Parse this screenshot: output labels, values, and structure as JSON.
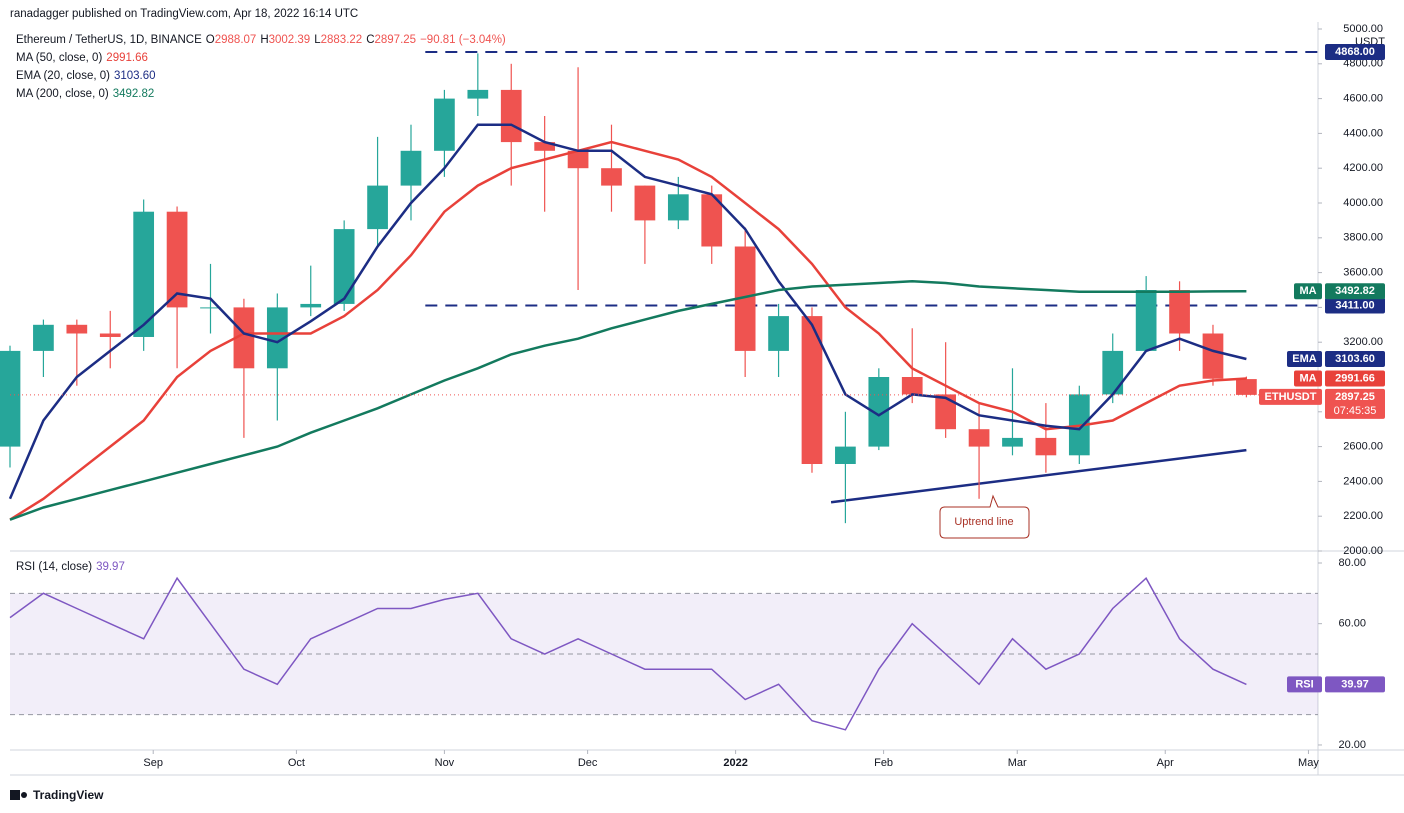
{
  "chart_data": {
    "type": "candlestick",
    "publisher": "ranadagger published on TradingView.com, Apr 18, 2022 16:14 UTC",
    "title": "Ethereum / TetherUS, 1D, BINANCE",
    "ohlc_legend": [
      {
        "key": "O",
        "value": "2988.07"
      },
      {
        "key": "H",
        "value": "3002.39"
      },
      {
        "key": "L",
        "value": "2883.22"
      },
      {
        "key": "C",
        "value": "2897.25"
      }
    ],
    "change": "−90.81 (−3.04%)",
    "x": [
      0,
      7,
      14,
      21,
      28,
      35,
      42,
      49,
      56,
      63,
      70,
      77,
      84,
      91,
      98,
      105,
      112,
      119,
      126,
      133,
      140,
      147,
      154,
      161,
      168,
      175,
      182,
      189,
      196,
      203,
      210,
      217,
      224,
      231,
      238,
      245,
      252,
      259
    ],
    "open": [
      2600,
      3150,
      3300,
      3250,
      3230,
      3950,
      3400,
      3400,
      3050,
      3400,
      3420,
      3850,
      4100,
      4300,
      4600,
      4650,
      4350,
      4300,
      4200,
      4100,
      3900,
      4050,
      3750,
      3150,
      3350,
      2500,
      2600,
      3000,
      2900,
      2700,
      2600,
      2650,
      2550,
      2900,
      3150,
      3500,
      3250,
      2988.07
    ],
    "high": [
      3180,
      3330,
      3330,
      3380,
      4020,
      3980,
      3650,
      3450,
      3480,
      3640,
      3900,
      4380,
      4450,
      4650,
      4860,
      4800,
      4500,
      4780,
      4450,
      4100,
      4150,
      4100,
      3860,
      3420,
      3400,
      2800,
      3050,
      3280,
      3200,
      2850,
      3050,
      2850,
      2950,
      3250,
      3580,
      3550,
      3300,
      3002.39
    ],
    "low": [
      2480,
      3000,
      2950,
      3050,
      3150,
      3050,
      3250,
      2650,
      2750,
      3350,
      3380,
      3750,
      3900,
      4150,
      4500,
      4100,
      3950,
      3500,
      3950,
      3650,
      3850,
      3650,
      3000,
      3000,
      2450,
      2160,
      2580,
      2850,
      2650,
      2300,
      2550,
      2450,
      2500,
      2850,
      3150,
      3150,
      2950,
      2883.22
    ],
    "close": [
      3150,
      3300,
      3250,
      3230,
      3950,
      3400,
      3400,
      3050,
      3400,
      3420,
      3850,
      4100,
      4300,
      4600,
      4650,
      4350,
      4300,
      4200,
      4100,
      3900,
      4050,
      3750,
      3150,
      3350,
      2500,
      2600,
      3000,
      2900,
      2700,
      2600,
      2650,
      2550,
      2900,
      3150,
      3500,
      3250,
      2990,
      2897.25
    ],
    "up_color": "#26a69a",
    "down_color": "#ef5350",
    "xlim": [
      0,
      274
    ],
    "xticks": [
      {
        "value": 30,
        "label": "Sep"
      },
      {
        "value": 60,
        "label": "Oct"
      },
      {
        "value": 91,
        "label": "Nov"
      },
      {
        "value": 121,
        "label": "Dec"
      },
      {
        "value": 152,
        "label": "2022"
      },
      {
        "value": 183,
        "label": "Feb"
      },
      {
        "value": 211,
        "label": "Mar"
      },
      {
        "value": 242,
        "label": "Apr"
      },
      {
        "value": 272,
        "label": "May"
      }
    ],
    "ylim": [
      2000,
      5000
    ],
    "yticks": [
      {
        "value": 2000,
        "label": "2000.00"
      },
      {
        "value": 2200,
        "label": "2200.00"
      },
      {
        "value": 2400,
        "label": "2400.00"
      },
      {
        "value": 2600,
        "label": "2600.00"
      },
      {
        "value": 2800,
        "label": "2800.00"
      },
      {
        "value": 3000,
        "label": "3000.00"
      },
      {
        "value": 3200,
        "label": "3200.00"
      },
      {
        "value": 3400,
        "label": "3400.00"
      },
      {
        "value": 3600,
        "label": "3600.00"
      },
      {
        "value": 3800,
        "label": "3800.00"
      },
      {
        "value": 4000,
        "label": "4000.00"
      },
      {
        "value": 4200,
        "label": "4200.00"
      },
      {
        "value": 4400,
        "label": "4400.00"
      },
      {
        "value": 4600,
        "label": "4600.00"
      },
      {
        "value": 4800,
        "label": "4800.00"
      },
      {
        "value": 5000,
        "label": "5000.00"
      }
    ],
    "y_unit": "USDT",
    "series": [
      {
        "name": "MA (50, close, 0)",
        "tag": "MA",
        "color": "#e8413a",
        "legend_value": "2991.66",
        "values": [
          2180,
          2300,
          2450,
          2600,
          2750,
          3000,
          3150,
          3250,
          3250,
          3250,
          3350,
          3500,
          3700,
          3950,
          4100,
          4200,
          4250,
          4300,
          4350,
          4300,
          4250,
          4150,
          4000,
          3850,
          3650,
          3400,
          3250,
          3050,
          2950,
          2850,
          2800,
          2700,
          2720,
          2750,
          2850,
          2950,
          2980,
          2991.66
        ]
      },
      {
        "name": "EMA (20, close, 0)",
        "tag": "EMA",
        "color": "#1c2d84",
        "legend_value": "3103.60",
        "values": [
          2300,
          2750,
          3000,
          3150,
          3300,
          3480,
          3450,
          3250,
          3200,
          3320,
          3450,
          3750,
          4000,
          4200,
          4450,
          4450,
          4350,
          4300,
          4300,
          4150,
          4100,
          4050,
          3850,
          3550,
          3300,
          2900,
          2780,
          2900,
          2880,
          2780,
          2750,
          2720,
          2700,
          2900,
          3150,
          3220,
          3150,
          3103.6
        ]
      },
      {
        "name": "MA (200, close, 0)",
        "tag": "MA",
        "color": "#137a5e",
        "legend_value": "3492.82",
        "values": [
          2180,
          2250,
          2300,
          2350,
          2400,
          2450,
          2500,
          2550,
          2600,
          2680,
          2750,
          2820,
          2900,
          2980,
          3050,
          3130,
          3180,
          3220,
          3280,
          3330,
          3380,
          3420,
          3460,
          3500,
          3520,
          3530,
          3540,
          3550,
          3540,
          3520,
          3510,
          3500,
          3490,
          3490,
          3490,
          3490,
          3492,
          3492.82
        ]
      }
    ],
    "levels": [
      {
        "value": 4868,
        "label": "4868.00",
        "color": "#1c2d84"
      },
      {
        "value": 3411,
        "label": "3411.00",
        "color": "#1c2d84"
      }
    ],
    "last_price": {
      "name": "ETHUSDT",
      "label": "2897.25",
      "countdown": "07:45:35"
    },
    "trendline": {
      "label": "Uptrend line",
      "color": "#1c2d84",
      "x": [
        172,
        259
      ],
      "values": [
        2280,
        2580
      ]
    },
    "rsi": {
      "name": "RSI (14, close)",
      "tag": "RSI",
      "color": "#7e57c2",
      "legend_value": "39.97",
      "values": [
        62,
        70,
        65,
        60,
        55,
        75,
        60,
        45,
        40,
        55,
        60,
        65,
        65,
        68,
        70,
        55,
        50,
        55,
        50,
        45,
        45,
        45,
        35,
        40,
        28,
        25,
        45,
        60,
        50,
        40,
        55,
        45,
        50,
        65,
        75,
        55,
        45,
        39.97
      ],
      "ylim": [
        19,
        83.3
      ],
      "yticks": [
        {
          "value": 20,
          "label": "20.00"
        },
        {
          "value": 60,
          "label": "60.00"
        },
        {
          "value": 80,
          "label": "80.00"
        }
      ],
      "band": [
        30,
        70
      ],
      "mid": 50
    },
    "brand": "TradingView"
  }
}
